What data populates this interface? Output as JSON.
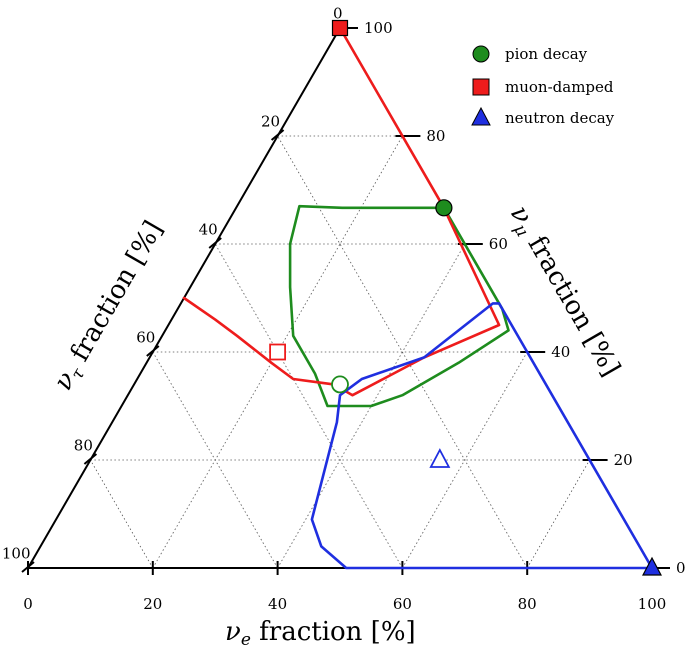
{
  "chart_data": {
    "type": "ternary",
    "axes": {
      "bottom": {
        "title": "ν_e fraction [%]",
        "sym": "ν",
        "sub": "e",
        "rest": " fraction [%]"
      },
      "right": {
        "title": "ν_μ fraction [%]",
        "sym": "ν",
        "sub": "μ",
        "rest": " fraction [%]"
      },
      "left": {
        "title": "ν_τ fraction [%]",
        "sym": "ν",
        "sub": "τ",
        "rest": " fraction [%]"
      }
    },
    "ticks": {
      "bottom": [
        "0",
        "20",
        "40",
        "60",
        "80",
        "100"
      ],
      "right": [
        "0",
        "20",
        "40",
        "60",
        "80",
        "100"
      ],
      "left": [
        "0",
        "20",
        "40",
        "60",
        "80",
        "100"
      ]
    },
    "grid": true,
    "legend": {
      "position": "top-right",
      "entries": [
        {
          "label": "pion decay",
          "marker": "circle",
          "color": "#1e8c1e"
        },
        {
          "label": "muon-damped",
          "marker": "square",
          "color": "#ee1c1c"
        },
        {
          "label": "neutron decay",
          "marker": "triangle",
          "color": "#1f2fe0"
        }
      ]
    },
    "series": [
      {
        "name": "pion decay",
        "color": "#1e8c1e",
        "marker": "circle",
        "source_point": {
          "e": 33.3,
          "mu": 66.7,
          "tau": 0.0
        },
        "best_fit": {
          "e": 33.0,
          "mu": 34.0,
          "tau": 33.0
        },
        "region": [
          {
            "e": 33.3,
            "mu": 66.7,
            "tau": 0.0
          },
          {
            "e": 42.0,
            "mu": 58.0,
            "tau": 0.0
          },
          {
            "e": 52.0,
            "mu": 48.0,
            "tau": 0.0
          },
          {
            "e": 55.0,
            "mu": 44.0,
            "tau": 1.0
          },
          {
            "e": 50.0,
            "mu": 38.0,
            "tau": 12.0
          },
          {
            "e": 44.0,
            "mu": 32.0,
            "tau": 24.0
          },
          {
            "e": 40.0,
            "mu": 30.0,
            "tau": 30.0
          },
          {
            "e": 33.0,
            "mu": 30.0,
            "tau": 37.0
          },
          {
            "e": 28.0,
            "mu": 36.0,
            "tau": 36.0
          },
          {
            "e": 21.0,
            "mu": 43.0,
            "tau": 36.0
          },
          {
            "e": 16.0,
            "mu": 52.0,
            "tau": 32.0
          },
          {
            "e": 12.0,
            "mu": 60.0,
            "tau": 28.0
          },
          {
            "e": 10.0,
            "mu": 67.0,
            "tau": 23.0
          },
          {
            "e": 17.0,
            "mu": 66.7,
            "tau": 16.3
          },
          {
            "e": 33.3,
            "mu": 66.7,
            "tau": 0.0
          }
        ]
      },
      {
        "name": "muon-damped",
        "color": "#ee1c1c",
        "marker": "square",
        "source_point": {
          "e": 0.0,
          "mu": 100.0,
          "tau": 0.0
        },
        "best_fit": {
          "e": 20.0,
          "mu": 40.0,
          "tau": 40.0
        },
        "region": [
          {
            "e": 0.0,
            "mu": 100.0,
            "tau": 0.0
          },
          {
            "e": 33.0,
            "mu": 67.0,
            "tau": 0.0
          },
          {
            "e": 53.0,
            "mu": 45.0,
            "tau": 2.0
          },
          {
            "e": 44.0,
            "mu": 39.0,
            "tau": 17.0
          },
          {
            "e": 36.0,
            "mu": 32.0,
            "tau": 32.0
          },
          {
            "e": 32.0,
            "mu": 34.0,
            "tau": 34.0
          },
          {
            "e": 25.0,
            "mu": 35.0,
            "tau": 40.0
          },
          {
            "e": 20.0,
            "mu": 38.0,
            "tau": 42.0
          },
          {
            "e": 12.0,
            "mu": 43.0,
            "tau": 45.0
          },
          {
            "e": 7.0,
            "mu": 46.0,
            "tau": 47.0
          },
          {
            "e": 0.0,
            "mu": 50.0,
            "tau": 50.0
          }
        ]
      },
      {
        "name": "neutron decay",
        "color": "#1f2fe0",
        "marker": "triangle",
        "source_point": {
          "e": 100.0,
          "mu": 0.0,
          "tau": 0.0
        },
        "best_fit": {
          "e": 56.0,
          "mu": 20.0,
          "tau": 24.0
        },
        "region": [
          {
            "e": 100.0,
            "mu": 0.0,
            "tau": 0.0
          },
          {
            "e": 51.0,
            "mu": 0.0,
            "tau": 49.0
          },
          {
            "e": 45.0,
            "mu": 4.0,
            "tau": 51.0
          },
          {
            "e": 41.0,
            "mu": 9.0,
            "tau": 50.0
          },
          {
            "e": 36.0,
            "mu": 27.0,
            "tau": 37.0
          },
          {
            "e": 34.0,
            "mu": 32.0,
            "tau": 34.0
          },
          {
            "e": 36.0,
            "mu": 35.0,
            "tau": 29.0
          },
          {
            "e": 44.0,
            "mu": 39.0,
            "tau": 17.0
          },
          {
            "e": 50.0,
            "mu": 49.0,
            "tau": 1.0
          },
          {
            "e": 51.0,
            "mu": 49.0,
            "tau": 0.0
          },
          {
            "e": 100.0,
            "mu": 0.0,
            "tau": 0.0
          }
        ]
      }
    ]
  }
}
